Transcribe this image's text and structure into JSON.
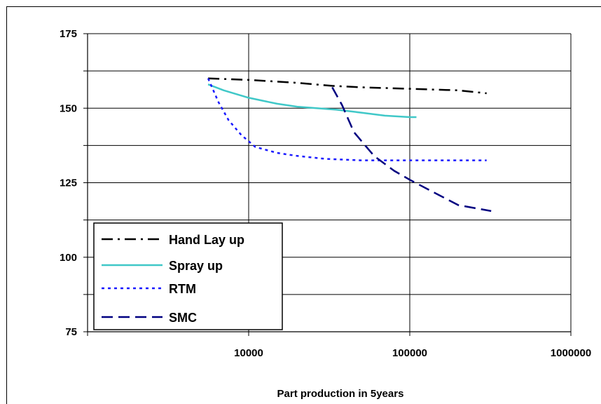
{
  "chart_data": {
    "type": "line",
    "title": "",
    "xlabel": "Part production in 5years",
    "ylabel": "",
    "x_scale": "log",
    "xlim": [
      1000,
      1000000
    ],
    "ylim": [
      75,
      175
    ],
    "x_ticks": [
      "10000",
      "100000",
      "1000000"
    ],
    "y_ticks": [
      "75",
      "100",
      "125",
      "150",
      "175"
    ],
    "grid": "horizontal and vertical major gridlines",
    "legend_position": "bottom-left",
    "series": [
      {
        "name": "Hand Lay up",
        "color": "#000000",
        "style": "dash-dot",
        "x": [
          5600,
          10000,
          20000,
          33000,
          50000,
          100000,
          200000,
          300000
        ],
        "y": [
          160,
          159.5,
          158.5,
          157.5,
          157,
          156.5,
          156,
          155
        ]
      },
      {
        "name": "Spray up",
        "color": "#40c8c8",
        "style": "solid",
        "x": [
          5600,
          7000,
          10000,
          15000,
          20000,
          35000,
          50000,
          70000,
          100000,
          110000
        ],
        "y": [
          158,
          156,
          153.5,
          151.5,
          150.5,
          149.5,
          148.5,
          147.5,
          147,
          147
        ]
      },
      {
        "name": "RTM",
        "color": "#1a1aff",
        "style": "dotted",
        "x": [
          5600,
          6500,
          7500,
          9000,
          11000,
          15000,
          20000,
          30000,
          50000,
          100000,
          300000
        ],
        "y": [
          160,
          152,
          146,
          141,
          137,
          135,
          134,
          133,
          132.5,
          132.5,
          132.5
        ]
      },
      {
        "name": "SMC",
        "color": "#000080",
        "style": "dashed",
        "x": [
          33000,
          38000,
          45000,
          60000,
          80000,
          100000,
          150000,
          200000,
          320000
        ],
        "y": [
          157,
          151,
          142,
          134,
          129,
          126,
          121,
          117.5,
          115.5
        ]
      }
    ],
    "legend": [
      "Hand Lay up",
      "Spray up",
      "RTM",
      "SMC"
    ]
  }
}
